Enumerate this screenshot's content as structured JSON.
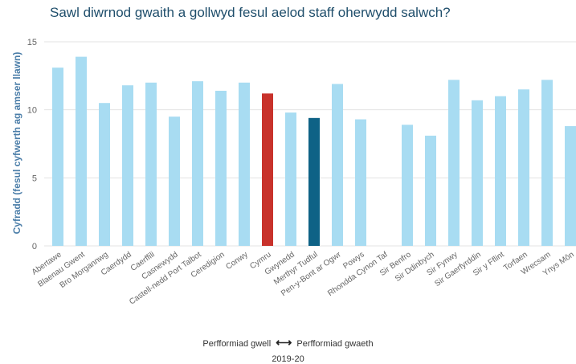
{
  "chart_data": {
    "type": "bar",
    "title": "Sawl diwrnod gwaith a gollwyd fesul aelod staff oherwydd salwch?",
    "ylabel": "Cyfradd (fesul cyfwerth ag amser llawn)",
    "xlabel": "",
    "ylim": [
      0,
      15
    ],
    "yticks": [
      0,
      5,
      10,
      15
    ],
    "grid": true,
    "categories": [
      "Abertawe",
      "Blaenau Gwent",
      "Bro Morgannwg",
      "Caerdydd",
      "Caerffili",
      "Casnewydd",
      "Castell-nedd Port Talbot",
      "Ceredigion",
      "Conwy",
      "Cymru",
      "Gwynedd",
      "Merthyr Tudful",
      "Pen-y-Bont ar Ogwr",
      "Powys",
      "Rhondda Cynon Taf",
      "Sir Benfro",
      "Sir Ddinbych",
      "Sir Fynwy",
      "Sir Gaerfyrddin",
      "Sir y Fflint",
      "Torfaen",
      "Wrecsam",
      "Ynys Môn"
    ],
    "values": [
      13.1,
      13.9,
      10.5,
      11.8,
      12.0,
      9.5,
      12.1,
      11.4,
      12.0,
      11.2,
      9.8,
      9.4,
      11.9,
      9.3,
      null,
      8.9,
      8.1,
      12.2,
      10.7,
      11.0,
      11.5,
      12.2,
      8.8
    ],
    "bar_colors": [
      "#a8dcf2",
      "#a8dcf2",
      "#a8dcf2",
      "#a8dcf2",
      "#a8dcf2",
      "#a8dcf2",
      "#a8dcf2",
      "#a8dcf2",
      "#a8dcf2",
      "#c8322b",
      "#a8dcf2",
      "#0e6286",
      "#a8dcf2",
      "#a8dcf2",
      "#a8dcf2",
      "#a8dcf2",
      "#a8dcf2",
      "#a8dcf2",
      "#a8dcf2",
      "#a8dcf2",
      "#a8dcf2",
      "#a8dcf2",
      "#a8dcf2"
    ],
    "colors": {
      "default": "#a8dcf2",
      "highlight_wales": "#c8322b",
      "highlight_selected": "#0e6286"
    },
    "legend": {
      "better": "Perfformiad gwell",
      "worse": "Perfformiad gwaeth",
      "arrow": "⟷"
    },
    "period": "2019-20"
  }
}
